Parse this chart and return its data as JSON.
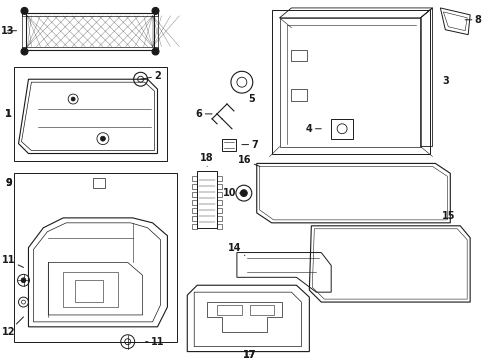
{
  "background_color": "#ffffff",
  "line_color": "#1a1a1a",
  "gray_color": "#888888",
  "lw": 0.7,
  "thin_lw": 0.4
}
